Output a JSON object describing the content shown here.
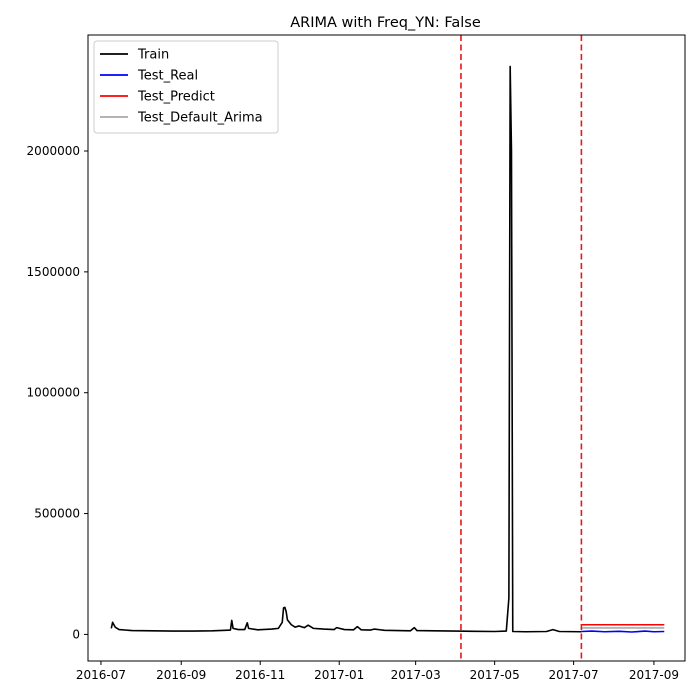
{
  "chart_data": {
    "type": "line",
    "title": "ARIMA with Freq_YN: False",
    "xlabel": "",
    "ylabel": "",
    "x_ticks": [
      "2016-07",
      "2016-09",
      "2016-11",
      "2017-01",
      "2017-03",
      "2017-05",
      "2017-07",
      "2017-09"
    ],
    "y_ticks": [
      0,
      500000,
      1000000,
      1500000,
      2000000
    ],
    "y_tick_labels": [
      "0",
      "500000",
      "1000000",
      "1500000",
      "2000000"
    ],
    "xlim": [
      "2016-06-21",
      "2017-09-25"
    ],
    "ylim": [
      -110000,
      2480000
    ],
    "grid": false,
    "legend_position": "top-left",
    "vlines": [
      {
        "x": "2017-04-05",
        "color": "#e31a1c",
        "style": "dashed"
      },
      {
        "x": "2017-07-07",
        "color": "#e31a1c",
        "style": "dashed"
      }
    ],
    "series": [
      {
        "name": "Train",
        "color": "#000000",
        "points": [
          [
            "2016-07-09",
            25000
          ],
          [
            "2016-07-10",
            50000
          ],
          [
            "2016-07-12",
            30000
          ],
          [
            "2016-07-15",
            20000
          ],
          [
            "2016-07-25",
            16000
          ],
          [
            "2016-08-10",
            15000
          ],
          [
            "2016-08-25",
            14000
          ],
          [
            "2016-09-10",
            14000
          ],
          [
            "2016-09-25",
            15000
          ],
          [
            "2016-10-05",
            17000
          ],
          [
            "2016-10-09",
            18000
          ],
          [
            "2016-10-10",
            58000
          ],
          [
            "2016-10-11",
            25000
          ],
          [
            "2016-10-15",
            20000
          ],
          [
            "2016-10-20",
            20000
          ],
          [
            "2016-10-22",
            48000
          ],
          [
            "2016-10-23",
            25000
          ],
          [
            "2016-10-30",
            19000
          ],
          [
            "2016-11-10",
            22000
          ],
          [
            "2016-11-15",
            25000
          ],
          [
            "2016-11-18",
            50000
          ],
          [
            "2016-11-19",
            110000
          ],
          [
            "2016-11-20",
            112000
          ],
          [
            "2016-11-21",
            95000
          ],
          [
            "2016-11-22",
            60000
          ],
          [
            "2016-11-25",
            40000
          ],
          [
            "2016-11-28",
            30000
          ],
          [
            "2016-12-01",
            35000
          ],
          [
            "2016-12-05",
            28000
          ],
          [
            "2016-12-08",
            38000
          ],
          [
            "2016-12-12",
            25000
          ],
          [
            "2016-12-20",
            22000
          ],
          [
            "2016-12-28",
            20000
          ],
          [
            "2016-12-30",
            28000
          ],
          [
            "2017-01-05",
            20000
          ],
          [
            "2017-01-12",
            19000
          ],
          [
            "2017-01-15",
            32000
          ],
          [
            "2017-01-18",
            19000
          ],
          [
            "2017-01-25",
            18000
          ],
          [
            "2017-01-28",
            22000
          ],
          [
            "2017-02-05",
            17000
          ],
          [
            "2017-02-15",
            16000
          ],
          [
            "2017-02-25",
            15000
          ],
          [
            "2017-02-28",
            28000
          ],
          [
            "2017-03-02",
            16000
          ],
          [
            "2017-03-15",
            15000
          ],
          [
            "2017-04-01",
            14000
          ],
          [
            "2017-04-15",
            13000
          ],
          [
            "2017-05-01",
            12000
          ],
          [
            "2017-05-10",
            14000
          ],
          [
            "2017-05-12",
            150000
          ],
          [
            "2017-05-13",
            2350000
          ],
          [
            "2017-05-14",
            2000000
          ],
          [
            "2017-05-15",
            12000
          ],
          [
            "2017-05-25",
            11000
          ],
          [
            "2017-06-10",
            12000
          ],
          [
            "2017-06-15",
            20000
          ],
          [
            "2017-06-20",
            12000
          ],
          [
            "2017-07-07",
            11000
          ]
        ]
      },
      {
        "name": "Test_Real",
        "color": "#0000ff",
        "points": [
          [
            "2017-07-07",
            12000
          ],
          [
            "2017-07-15",
            14000
          ],
          [
            "2017-07-25",
            11000
          ],
          [
            "2017-08-05",
            13000
          ],
          [
            "2017-08-15",
            10000
          ],
          [
            "2017-08-25",
            14000
          ],
          [
            "2017-09-01",
            11000
          ],
          [
            "2017-09-09",
            12000
          ]
        ]
      },
      {
        "name": "Test_Predict",
        "color": "#ff0000",
        "points": [
          [
            "2017-07-07",
            40000
          ],
          [
            "2017-09-09",
            40000
          ]
        ]
      },
      {
        "name": "Test_Default_Arima",
        "color": "#aaaaaa",
        "points": [
          [
            "2017-07-07",
            27000
          ],
          [
            "2017-09-09",
            27000
          ]
        ]
      }
    ]
  }
}
